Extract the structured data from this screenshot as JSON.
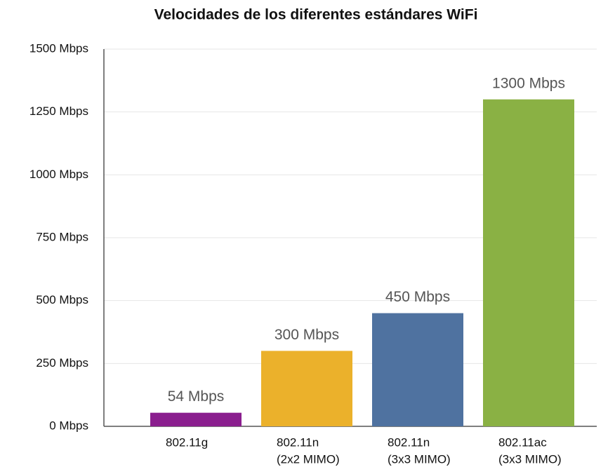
{
  "chart_data": {
    "type": "bar",
    "title": "Velocidades de los diferentes estándares WiFi",
    "categories": [
      [
        "802.11g"
      ],
      [
        "802.11n",
        "(2x2 MIMO)"
      ],
      [
        "802.11n",
        "(3x3 MIMO)"
      ],
      [
        "802.11ac",
        "(3x3 MIMO)"
      ]
    ],
    "values": [
      54,
      300,
      450,
      1300
    ],
    "value_labels": [
      "54 Mbps",
      "300 Mbps",
      "450 Mbps",
      "1300 Mbps"
    ],
    "colors": [
      "#8a1e8e",
      "#ebb12b",
      "#4f72a0",
      "#8ab144"
    ],
    "ylim": [
      0,
      1500
    ],
    "yticks": [
      {
        "value": 0,
        "label": "0 Mbps"
      },
      {
        "value": 250,
        "label": "250 Mbps"
      },
      {
        "value": 500,
        "label": "500 Mbps"
      },
      {
        "value": 750,
        "label": "750 Mbps"
      },
      {
        "value": 1000,
        "label": "1000 Mbps"
      },
      {
        "value": 1250,
        "label": "1250 Mbps"
      },
      {
        "value": 1500,
        "label": "1500 Mbps"
      }
    ],
    "grid": true
  }
}
